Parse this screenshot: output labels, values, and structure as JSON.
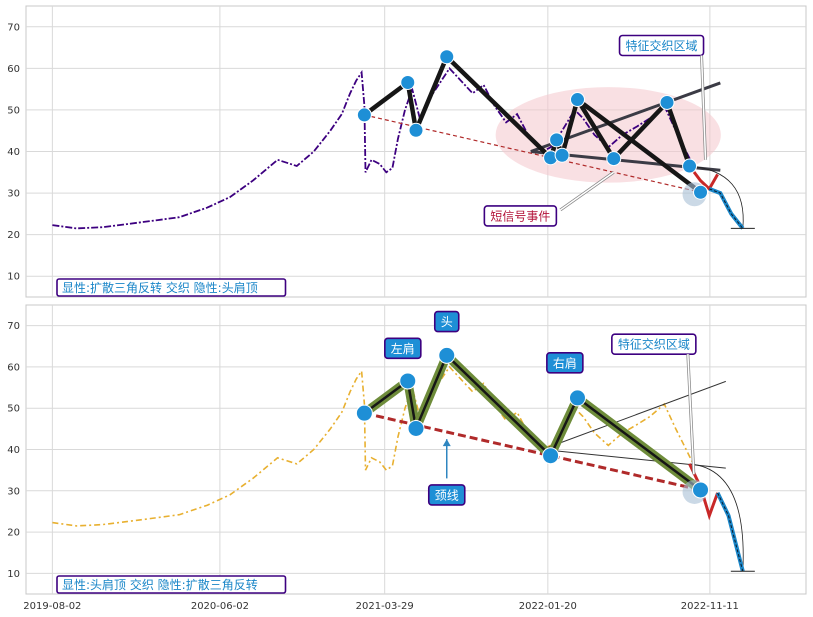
{
  "chart_data": [
    {
      "type": "line",
      "panel": "top",
      "ylim": [
        5,
        75
      ],
      "yticks": [
        10,
        20,
        30,
        40,
        50,
        60,
        70
      ],
      "x_range": [
        "2019-06-15",
        "2023-05-05"
      ],
      "grid": true,
      "price_color": "#3d0080",
      "series": [
        {
          "values": [
            [
              "2019-08-02",
              22.3
            ],
            [
              "2019-09-15",
              21.5
            ],
            [
              "2019-11-01",
              21.8
            ],
            [
              "2019-12-20",
              22.6
            ],
            [
              "2020-02-10",
              23.5
            ],
            [
              "2020-03-20",
              24.2
            ],
            [
              "2020-05-10",
              26.5
            ],
            [
              "2020-06-20",
              29
            ],
            [
              "2020-08-01",
              33
            ],
            [
              "2020-09-15",
              38
            ],
            [
              "2020-10-20",
              36.5
            ],
            [
              "2020-11-20",
              40
            ],
            [
              "2020-12-20",
              45
            ],
            [
              "2021-01-10",
              49
            ],
            [
              "2021-01-25",
              54
            ],
            [
              "2021-02-05",
              57
            ],
            [
              "2021-02-15",
              59
            ],
            [
              "2021-02-20",
              51
            ],
            [
              "2021-02-22",
              35
            ],
            [
              "2021-03-05",
              38
            ],
            [
              "2021-03-20",
              37
            ],
            [
              "2021-04-01",
              35
            ],
            [
              "2021-04-12",
              36
            ],
            [
              "2021-04-22",
              43
            ],
            [
              "2021-05-05",
              50
            ],
            [
              "2021-05-18",
              55
            ],
            [
              "2021-06-01",
              48
            ],
            [
              "2021-06-15",
              52
            ],
            [
              "2021-07-05",
              56
            ],
            [
              "2021-07-25",
              60
            ],
            [
              "2021-08-15",
              57
            ],
            [
              "2021-09-05",
              54
            ],
            [
              "2021-09-25",
              56
            ],
            [
              "2021-10-15",
              51
            ],
            [
              "2021-11-05",
              47
            ],
            [
              "2021-11-25",
              49
            ],
            [
              "2021-12-15",
              44
            ],
            [
              "2022-01-10",
              40
            ],
            [
              "2022-01-25",
              41
            ],
            [
              "2022-02-15",
              45
            ],
            [
              "2022-03-10",
              50
            ],
            [
              "2022-03-25",
              48
            ],
            [
              "2022-04-15",
              44
            ],
            [
              "2022-05-10",
              41
            ],
            [
              "2022-06-05",
              44
            ],
            [
              "2022-07-01",
              46
            ],
            [
              "2022-07-25",
              48
            ],
            [
              "2022-08-20",
              51
            ],
            [
              "2022-09-10",
              45
            ],
            [
              "2022-09-25",
              41
            ],
            [
              "2022-10-10",
              37
            ]
          ]
        }
      ],
      "pattern_nodes": [
        [
          "2021-02-20",
          48.8
        ],
        [
          "2021-05-10",
          56.6
        ],
        [
          "2021-05-25",
          45.1
        ],
        [
          "2021-07-20",
          62.8
        ],
        [
          "2022-01-25",
          38.5
        ],
        [
          "2022-02-05",
          42.8
        ],
        [
          "2022-02-15",
          39.1
        ],
        [
          "2022-03-15",
          52.5
        ],
        [
          "2022-05-20",
          38.3
        ],
        [
          "2022-08-25",
          51.8
        ],
        [
          "2022-10-05",
          36.5
        ],
        [
          "2022-10-25",
          30.2
        ]
      ],
      "pattern_lines": [
        [
          [
            "2021-02-20",
            48.8
          ],
          [
            "2021-05-10",
            56.6
          ]
        ],
        [
          [
            "2021-05-10",
            56.6
          ],
          [
            "2021-05-25",
            45.1
          ]
        ],
        [
          [
            "2021-05-25",
            45.1
          ],
          [
            "2021-07-20",
            62.8
          ]
        ],
        [
          [
            "2021-07-20",
            62.8
          ],
          [
            "2022-01-25",
            38.5
          ]
        ],
        [
          [
            "2022-01-25",
            38.5
          ],
          [
            "2022-02-05",
            42.8
          ]
        ],
        [
          [
            "2022-02-05",
            42.8
          ],
          [
            "2022-02-15",
            39.1
          ]
        ],
        [
          [
            "2022-02-15",
            39.1
          ],
          [
            "2022-03-15",
            52.5
          ]
        ],
        [
          [
            "2022-03-15",
            52.5
          ],
          [
            "2022-05-20",
            38.3
          ]
        ],
        [
          [
            "2022-05-20",
            38.3
          ],
          [
            "2022-08-25",
            51.8
          ]
        ],
        [
          [
            "2022-08-25",
            51.8
          ],
          [
            "2022-10-05",
            36.5
          ]
        ],
        [
          [
            "2022-03-15",
            52.5
          ],
          [
            "2022-10-25",
            30.2
          ]
        ]
      ],
      "triangle_lines": [
        [
          [
            "2021-12-20",
            40
          ],
          [
            "2022-11-30",
            56.5
          ]
        ],
        [
          [
            "2021-12-20",
            40
          ],
          [
            "2022-11-30",
            35.5
          ]
        ]
      ],
      "neckline": [
        [
          "2021-02-20",
          48.8
        ],
        [
          "2022-10-25",
          30.2
        ]
      ],
      "forecast": {
        "red": [
          [
            "2022-10-05",
            36.5
          ],
          [
            "2022-10-25",
            33
          ],
          [
            "2022-11-10",
            31
          ],
          [
            "2022-11-25",
            34.5
          ]
        ],
        "blue": [
          [
            "2022-11-10",
            31
          ],
          [
            "2022-11-30",
            30
          ],
          [
            "2022-12-20",
            25
          ],
          [
            "2023-01-10",
            21.5
          ]
        ],
        "target_y": 21.5
      },
      "ellipse": {
        "center": [
          "2022-05-10",
          44
        ],
        "rx_days": 205,
        "ry_value": 11.5
      },
      "annotations": [
        {
          "key": "feature_zone",
          "text": "特征交织区域",
          "x": "2022-08-15",
          "y": 65.5,
          "color": "#1a86c8"
        },
        {
          "key": "short_signal",
          "text": "短信号事件",
          "x": "2021-12-01",
          "y": 24.5,
          "color": "#b3133a"
        }
      ],
      "caption": "显性:扩散三角反转 交织 隐性:头肩顶"
    },
    {
      "type": "line",
      "panel": "bottom",
      "ylim": [
        5,
        75
      ],
      "yticks": [
        10,
        20,
        30,
        40,
        50,
        60,
        70
      ],
      "x_range": [
        "2019-06-15",
        "2023-05-05"
      ],
      "xticks": [
        "2019-08-02",
        "2020-06-02",
        "2021-03-29",
        "2022-01-20",
        "2022-11-11"
      ],
      "grid": true,
      "price_color": "#e8b030",
      "series": [
        {
          "values": [
            [
              "2019-08-02",
              22.3
            ],
            [
              "2019-09-15",
              21.5
            ],
            [
              "2019-11-01",
              21.8
            ],
            [
              "2019-12-20",
              22.6
            ],
            [
              "2020-02-10",
              23.5
            ],
            [
              "2020-03-20",
              24.2
            ],
            [
              "2020-05-10",
              26.5
            ],
            [
              "2020-06-20",
              29
            ],
            [
              "2020-08-01",
              33
            ],
            [
              "2020-09-15",
              38
            ],
            [
              "2020-10-20",
              36.5
            ],
            [
              "2020-11-20",
              40
            ],
            [
              "2020-12-20",
              45
            ],
            [
              "2021-01-10",
              49
            ],
            [
              "2021-01-25",
              54
            ],
            [
              "2021-02-05",
              57
            ],
            [
              "2021-02-15",
              59
            ],
            [
              "2021-02-20",
              51
            ],
            [
              "2021-02-22",
              35
            ],
            [
              "2021-03-05",
              38
            ],
            [
              "2021-03-20",
              37
            ],
            [
              "2021-04-01",
              35
            ],
            [
              "2021-04-12",
              36
            ],
            [
              "2021-04-22",
              43
            ],
            [
              "2021-05-05",
              50
            ],
            [
              "2021-05-18",
              55
            ],
            [
              "2021-06-01",
              48
            ],
            [
              "2021-06-15",
              52
            ],
            [
              "2021-07-05",
              56
            ],
            [
              "2021-07-25",
              60
            ],
            [
              "2021-08-15",
              57
            ],
            [
              "2021-09-05",
              54
            ],
            [
              "2021-09-25",
              56
            ],
            [
              "2021-10-15",
              51
            ],
            [
              "2021-11-05",
              47
            ],
            [
              "2021-11-25",
              49
            ],
            [
              "2021-12-15",
              44
            ],
            [
              "2022-01-10",
              40
            ],
            [
              "2022-01-25",
              41
            ],
            [
              "2022-02-15",
              45
            ],
            [
              "2022-03-10",
              50
            ],
            [
              "2022-03-25",
              48
            ],
            [
              "2022-04-15",
              44
            ],
            [
              "2022-05-10",
              41
            ],
            [
              "2022-06-05",
              44
            ],
            [
              "2022-07-01",
              46
            ],
            [
              "2022-07-25",
              48
            ],
            [
              "2022-08-20",
              51
            ],
            [
              "2022-09-10",
              45
            ],
            [
              "2022-09-25",
              41
            ],
            [
              "2022-10-10",
              37
            ]
          ]
        }
      ],
      "pattern_nodes": [
        [
          "2021-02-20",
          48.8
        ],
        [
          "2021-05-10",
          56.6
        ],
        [
          "2021-05-25",
          45.1
        ],
        [
          "2021-07-20",
          62.8
        ],
        [
          "2022-01-25",
          38.5
        ],
        [
          "2022-03-15",
          52.5
        ],
        [
          "2022-10-25",
          30.2
        ]
      ],
      "pattern_lines": [
        [
          [
            "2021-02-20",
            48.8
          ],
          [
            "2021-05-10",
            56.6
          ]
        ],
        [
          [
            "2021-05-10",
            56.6
          ],
          [
            "2021-05-25",
            45.1
          ]
        ],
        [
          [
            "2021-05-25",
            45.1
          ],
          [
            "2021-07-20",
            62.8
          ]
        ],
        [
          [
            "2021-07-20",
            62.8
          ],
          [
            "2022-01-25",
            38.5
          ]
        ],
        [
          [
            "2022-01-25",
            38.5
          ],
          [
            "2022-03-15",
            52.5
          ]
        ],
        [
          [
            "2022-03-15",
            52.5
          ],
          [
            "2022-10-25",
            30.2
          ]
        ]
      ],
      "triangle_lines": [
        [
          [
            "2022-01-10",
            40
          ],
          [
            "2022-12-10",
            56.5
          ]
        ],
        [
          [
            "2022-01-10",
            40
          ],
          [
            "2022-12-10",
            35.5
          ]
        ]
      ],
      "neckline": [
        [
          "2021-02-20",
          48.8
        ],
        [
          "2022-10-25",
          30.2
        ]
      ],
      "forecast": {
        "red": [
          [
            "2022-10-05",
            36.5
          ],
          [
            "2022-10-25",
            31
          ],
          [
            "2022-11-10",
            24
          ],
          [
            "2022-11-25",
            29.5
          ]
        ],
        "blue": [
          [
            "2022-11-25",
            29.5
          ],
          [
            "2022-12-15",
            24
          ],
          [
            "2023-01-10",
            10.5
          ]
        ],
        "target_y": 10.5
      },
      "annotations": [
        {
          "key": "left_shoulder",
          "text": "左肩",
          "x": "2021-05-01",
          "y": 64.5,
          "color": "#ffffff"
        },
        {
          "key": "head",
          "text": "头",
          "x": "2021-07-20",
          "y": 71,
          "color": "#ffffff"
        },
        {
          "key": "right_shoulder",
          "text": "右肩",
          "x": "2022-02-20",
          "y": 61,
          "color": "#ffffff"
        },
        {
          "key": "neckline_label",
          "text": "颈线",
          "x": "2021-07-20",
          "y": 29,
          "color": "#ffffff"
        },
        {
          "key": "feature_zone",
          "text": "特征交织区域",
          "x": "2022-08-01",
          "y": 65.5,
          "color": "#1a86c8"
        }
      ],
      "caption": "显性:头肩顶 交织 隐性:扩散三角反转"
    }
  ]
}
